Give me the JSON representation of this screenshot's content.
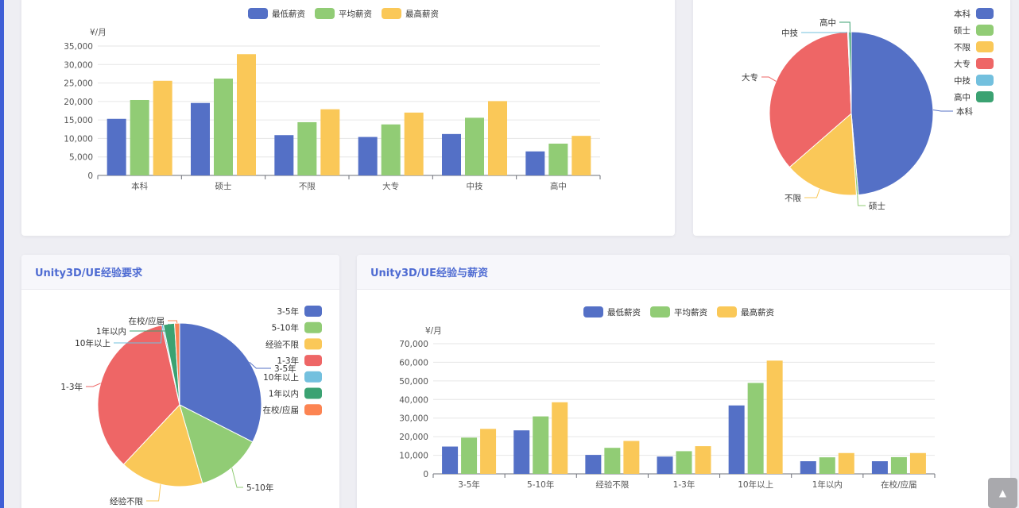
{
  "charts": {
    "edu_salary": {
      "type": "bar",
      "unit": "¥/月",
      "ylim": [
        0,
        35000
      ],
      "yticks": [
        "0",
        "5,000",
        "10,000",
        "15,000",
        "20,000",
        "25,000",
        "30,000",
        "35,000"
      ],
      "categories": [
        "本科",
        "硕士",
        "不限",
        "大专",
        "中技",
        "高中"
      ],
      "series": [
        {
          "name": "最低薪资",
          "color": "#5470c6",
          "values": [
            15300,
            19600,
            10900,
            10400,
            11200,
            6500
          ]
        },
        {
          "name": "平均薪资",
          "color": "#91cc75",
          "values": [
            20400,
            26200,
            14400,
            13800,
            15600,
            8600
          ]
        },
        {
          "name": "最高薪资",
          "color": "#fac858",
          "values": [
            25600,
            32800,
            17900,
            17000,
            20100,
            10700
          ]
        }
      ],
      "legend_position": "top-center",
      "grid": true
    },
    "edu_pie": {
      "type": "pie",
      "legend": [
        {
          "name": "本科",
          "color": "#5470c6"
        },
        {
          "name": "硕士",
          "color": "#91cc75"
        },
        {
          "name": "不限",
          "color": "#fac858"
        },
        {
          "name": "大专",
          "color": "#ee6666"
        },
        {
          "name": "中技",
          "color": "#73c0de"
        },
        {
          "name": "高中",
          "color": "#3ba272"
        }
      ],
      "values": [
        48.6,
        0.4,
        14.6,
        35.7,
        0.2,
        0.5
      ],
      "legend_position": "right"
    },
    "exp_pie": {
      "title": "Unity3D/UE经验要求",
      "type": "pie",
      "legend": [
        {
          "name": "3-5年",
          "color": "#5470c6"
        },
        {
          "name": "5-10年",
          "color": "#91cc75"
        },
        {
          "name": "经验不限",
          "color": "#fac858"
        },
        {
          "name": "1-3年",
          "color": "#ee6666"
        },
        {
          "name": "10年以上",
          "color": "#73c0de"
        },
        {
          "name": "1年以内",
          "color": "#3ba272"
        },
        {
          "name": "在校/应届",
          "color": "#fc8452"
        }
      ],
      "values": [
        32.5,
        13.0,
        16.5,
        34.5,
        0.3,
        2.2,
        1.0
      ],
      "legend_position": "right"
    },
    "exp_salary": {
      "title": "Unity3D/UE经验与薪资",
      "type": "bar",
      "unit": "¥/月",
      "ylim": [
        0,
        70000
      ],
      "yticks": [
        "0",
        "10,000",
        "20,000",
        "30,000",
        "40,000",
        "50,000",
        "60,000",
        "70,000"
      ],
      "categories": [
        "3-5年",
        "5-10年",
        "经验不限",
        "1-3年",
        "10年以上",
        "1年以内",
        "在校/应届"
      ],
      "series": [
        {
          "name": "最低薪资",
          "color": "#5470c6",
          "values": [
            14700,
            23400,
            10200,
            9300,
            36800,
            6800,
            6800
          ]
        },
        {
          "name": "平均薪资",
          "color": "#91cc75",
          "values": [
            19500,
            30900,
            14000,
            12200,
            48900,
            8900,
            9000
          ]
        },
        {
          "name": "最高薪资",
          "color": "#fac858",
          "values": [
            24200,
            38500,
            17700,
            14900,
            60900,
            11200,
            11200
          ]
        }
      ],
      "legend_position": "top-center",
      "grid": true
    }
  },
  "scroll_top_icon": "arrow-up-icon",
  "scroll_top_glyph": "▲"
}
